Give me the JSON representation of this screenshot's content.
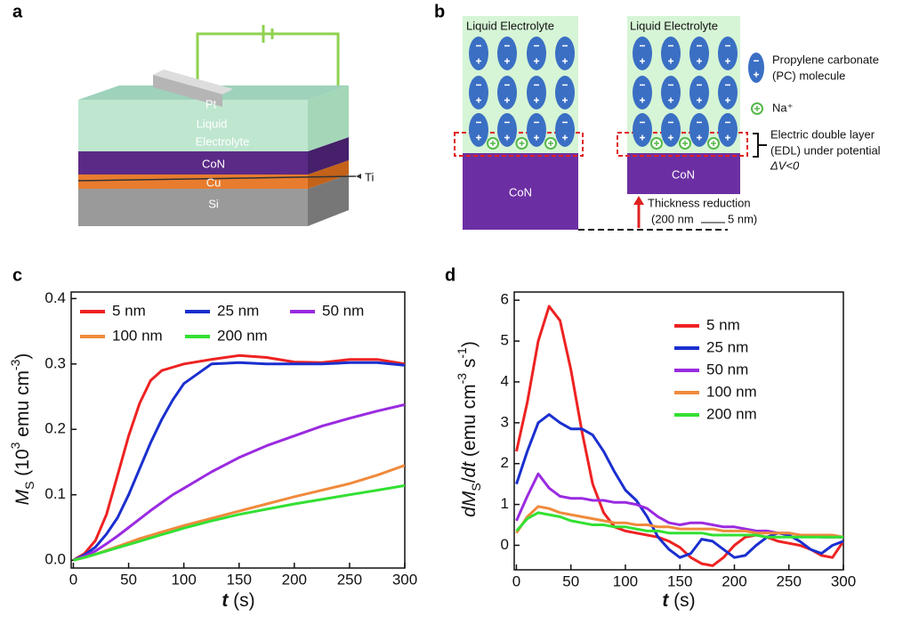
{
  "panel_labels": [
    "a",
    "b",
    "c",
    "d"
  ],
  "diagram_a": {
    "pt": "Pt",
    "electrolyte": [
      "Liquid",
      "Electrolyte"
    ],
    "con": "CoN",
    "cu": "Cu",
    "si": "Si",
    "ti": "Ti"
  },
  "diagram_b": {
    "electrolyte_left": "Liquid  Electrolyte",
    "electrolyte_right": "Liquid  Electrolyte",
    "con_left": "CoN",
    "con_right": "CoN",
    "pc": [
      "Propylene carbonate",
      "(PC) molecule"
    ],
    "na": "Na⁺",
    "edl": [
      "Electric double layer",
      "(EDL) under potential",
      "ΔV<0"
    ],
    "thickness": [
      "Thickness reduction",
      "(200 nm",
      "5 nm)"
    ]
  },
  "chart_data": [
    {
      "type": "line",
      "xlabel": [
        "t",
        " (s)"
      ],
      "ylabel": [
        "M",
        "S",
        " (10",
        "3",
        " emu cm",
        "-3",
        ")"
      ],
      "x": [
        0,
        10,
        20,
        30,
        40,
        50,
        60,
        70,
        80,
        90,
        100,
        125,
        150,
        175,
        200,
        225,
        250,
        275,
        300
      ],
      "series": [
        {
          "name": "5 nm",
          "color": "#ee2222",
          "values": [
            0,
            0.01,
            0.03,
            0.07,
            0.13,
            0.19,
            0.24,
            0.275,
            0.29,
            0.295,
            0.3,
            0.307,
            0.313,
            0.31,
            0.303,
            0.302,
            0.307,
            0.307,
            0.3
          ]
        },
        {
          "name": "25 nm",
          "color": "#1a2fcf",
          "values": [
            0,
            0.008,
            0.02,
            0.04,
            0.065,
            0.1,
            0.14,
            0.18,
            0.215,
            0.245,
            0.27,
            0.3,
            0.302,
            0.3,
            0.3,
            0.3,
            0.302,
            0.302,
            0.298
          ]
        },
        {
          "name": "50 nm",
          "color": "#9a2be0",
          "values": [
            0,
            0.006,
            0.014,
            0.025,
            0.037,
            0.05,
            0.063,
            0.076,
            0.088,
            0.1,
            0.11,
            0.135,
            0.157,
            0.175,
            0.19,
            0.205,
            0.217,
            0.228,
            0.238
          ]
        },
        {
          "name": "100 nm",
          "color": "#f08a3c",
          "values": [
            0,
            0.004,
            0.009,
            0.015,
            0.021,
            0.027,
            0.033,
            0.038,
            0.043,
            0.048,
            0.053,
            0.064,
            0.075,
            0.086,
            0.097,
            0.107,
            0.117,
            0.13,
            0.145
          ]
        },
        {
          "name": "200 nm",
          "color": "#33e033",
          "values": [
            0,
            0.004,
            0.009,
            0.014,
            0.019,
            0.024,
            0.029,
            0.034,
            0.039,
            0.044,
            0.049,
            0.06,
            0.07,
            0.078,
            0.086,
            0.093,
            0.1,
            0.107,
            0.114
          ]
        }
      ],
      "xlim": [
        -2,
        300
      ],
      "ylim": [
        -0.012,
        0.41
      ],
      "xticks": [
        0,
        50,
        100,
        150,
        200,
        250,
        300
      ],
      "yticks": [
        {
          "value": 0,
          "label": "0.0"
        },
        0.1,
        0.2,
        0.3,
        0.4
      ],
      "legend": "top-left",
      "legend_columns": 3
    },
    {
      "type": "line",
      "xlabel": [
        "t",
        " (s)"
      ],
      "ylabel": [
        "d",
        "M",
        "S",
        "/",
        "dt",
        " (emu cm",
        "-3",
        " s",
        "-1",
        ")"
      ],
      "x": [
        0,
        10,
        20,
        30,
        40,
        50,
        60,
        70,
        80,
        90,
        100,
        110,
        120,
        130,
        140,
        150,
        160,
        170,
        180,
        190,
        200,
        210,
        220,
        230,
        240,
        250,
        260,
        270,
        280,
        290,
        300
      ],
      "series": [
        {
          "name": "5 nm",
          "color": "#ee2222",
          "values": [
            2.3,
            3.5,
            5.0,
            5.85,
            5.5,
            4.3,
            2.8,
            1.5,
            0.8,
            0.45,
            0.35,
            0.3,
            0.25,
            0.2,
            0.1,
            -0.05,
            -0.3,
            -0.45,
            -0.5,
            -0.3,
            0,
            0.2,
            0.25,
            0.2,
            0.1,
            0.05,
            0,
            -0.1,
            -0.25,
            -0.3,
            0.1
          ]
        },
        {
          "name": "25 nm",
          "color": "#1a2fcf",
          "values": [
            1.5,
            2.3,
            3.0,
            3.2,
            3.0,
            2.85,
            2.85,
            2.7,
            2.3,
            1.8,
            1.35,
            1.1,
            0.7,
            0.2,
            -0.1,
            -0.3,
            -0.2,
            0.15,
            0.1,
            -0.1,
            -0.3,
            -0.25,
            0,
            0.2,
            0.3,
            0.25,
            0.1,
            -0.1,
            -0.2,
            0,
            0.1
          ]
        },
        {
          "name": "50 nm",
          "color": "#9a2be0",
          "values": [
            0.6,
            1.2,
            1.75,
            1.4,
            1.2,
            1.15,
            1.15,
            1.1,
            1.1,
            1.05,
            1.05,
            1.0,
            0.9,
            0.7,
            0.55,
            0.5,
            0.55,
            0.55,
            0.5,
            0.45,
            0.45,
            0.4,
            0.35,
            0.35,
            0.3,
            0.3,
            0.25,
            0.25,
            0.2,
            0.2,
            0.2
          ]
        },
        {
          "name": "100 nm",
          "color": "#f08a3c",
          "values": [
            0.3,
            0.7,
            0.95,
            0.9,
            0.8,
            0.75,
            0.7,
            0.65,
            0.6,
            0.55,
            0.55,
            0.5,
            0.5,
            0.45,
            0.45,
            0.4,
            0.4,
            0.4,
            0.4,
            0.35,
            0.35,
            0.35,
            0.3,
            0.3,
            0.3,
            0.3,
            0.25,
            0.25,
            0.25,
            0.25,
            0.2
          ]
        },
        {
          "name": "200 nm",
          "color": "#33e033",
          "values": [
            0.35,
            0.65,
            0.8,
            0.75,
            0.7,
            0.6,
            0.55,
            0.5,
            0.5,
            0.45,
            0.45,
            0.4,
            0.35,
            0.35,
            0.3,
            0.3,
            0.3,
            0.3,
            0.25,
            0.25,
            0.25,
            0.25,
            0.25,
            0.2,
            0.2,
            0.2,
            0.2,
            0.2,
            0.2,
            0.2,
            0.2
          ]
        }
      ],
      "xlim": [
        -2,
        300
      ],
      "ylim": [
        -0.6,
        6.2
      ],
      "xticks": [
        0,
        50,
        100,
        150,
        200,
        250,
        300
      ],
      "yticks": [
        0,
        1,
        2,
        3,
        4,
        5,
        6
      ],
      "legend": "top-right",
      "legend_columns": 1
    }
  ]
}
